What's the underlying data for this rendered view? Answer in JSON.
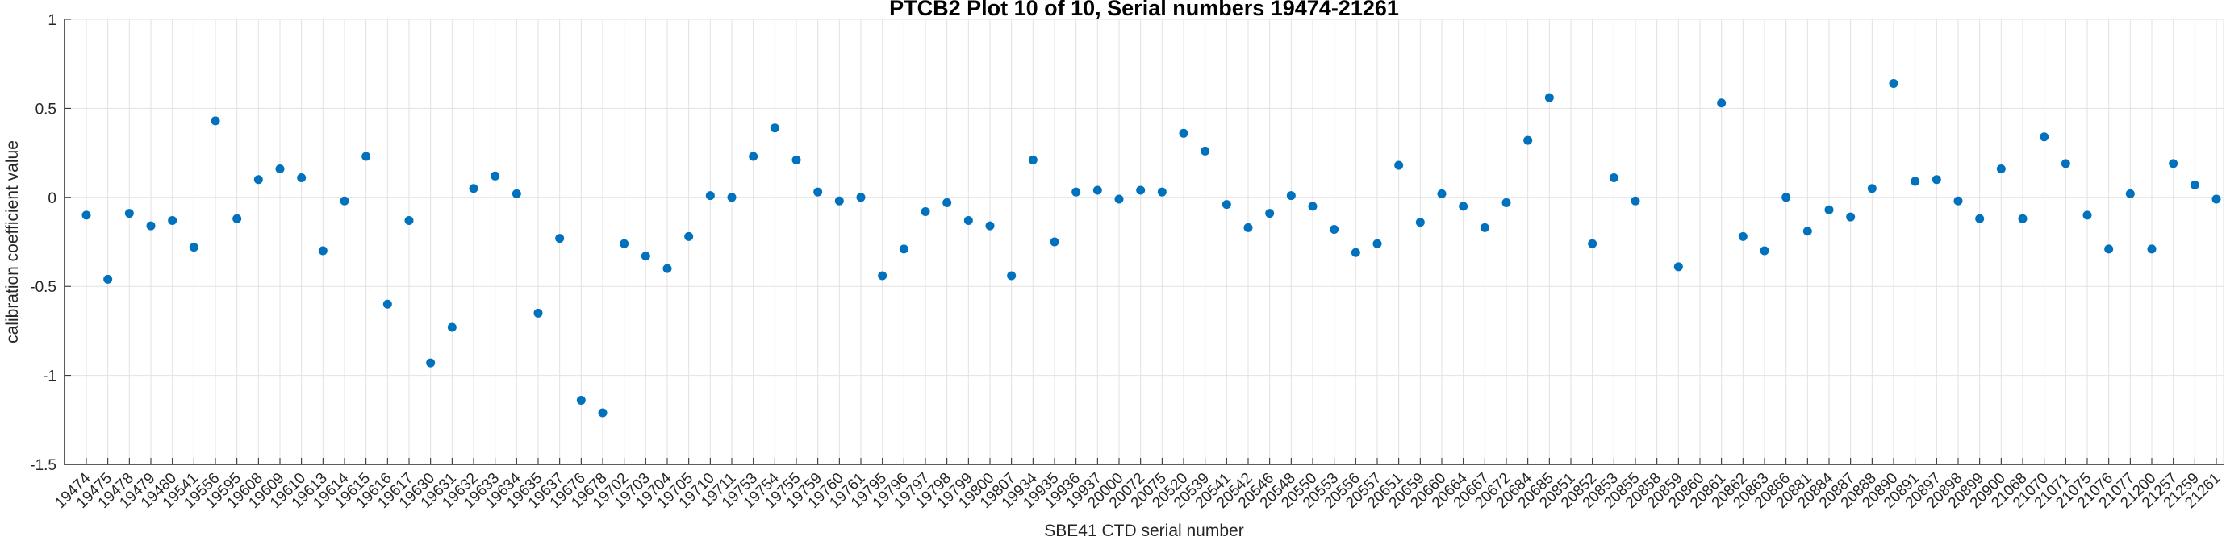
{
  "chart_data": {
    "type": "scatter",
    "title": "PTCB2 Plot 10 of 10, Serial numbers 19474-21261",
    "xlabel": "SBE41 CTD serial number",
    "ylabel": "calibration coefficient value",
    "ylim": [
      -1.5,
      1
    ],
    "yticks": [
      1,
      0.5,
      0,
      -0.5,
      -1,
      -1.5
    ],
    "grid": true,
    "legend": "none",
    "marker_color": "#0072BD",
    "grid_color": "#e2e2e2",
    "axis_color": "#262626",
    "categories": [
      "19474",
      "19475",
      "19478",
      "19479",
      "19480",
      "19541",
      "19556",
      "19595",
      "19608",
      "19609",
      "19610",
      "19613",
      "19614",
      "19615",
      "19616",
      "19617",
      "19630",
      "19631",
      "19632",
      "19633",
      "19634",
      "19635",
      "19637",
      "19676",
      "19678",
      "19702",
      "19703",
      "19704",
      "19705",
      "19710",
      "19711",
      "19753",
      "19754",
      "19755",
      "19759",
      "19760",
      "19761",
      "19795",
      "19796",
      "19797",
      "19798",
      "19799",
      "19800",
      "19807",
      "19934",
      "19935",
      "19936",
      "19937",
      "20000",
      "20072",
      "20075",
      "20520",
      "20539",
      "20541",
      "20542",
      "20546",
      "20548",
      "20550",
      "20553",
      "20556",
      "20557",
      "20651",
      "20659",
      "20660",
      "20664",
      "20667",
      "20672",
      "20684",
      "20685",
      "20851",
      "20852",
      "20853",
      "20855",
      "20858",
      "20859",
      "20860",
      "20861",
      "20862",
      "20863",
      "20866",
      "20881",
      "20884",
      "20887",
      "20888",
      "20890",
      "20891",
      "20897",
      "20898",
      "20899",
      "20900",
      "21068",
      "21070",
      "21071",
      "21075",
      "21076",
      "21077",
      "21200",
      "21257",
      "21259",
      "21261"
    ],
    "values": [
      -0.1,
      -0.46,
      -0.09,
      -0.16,
      -0.13,
      -0.28,
      0.43,
      -0.12,
      0.1,
      0.16,
      0.11,
      -0.3,
      -0.02,
      0.23,
      -0.6,
      -0.13,
      -0.93,
      -0.73,
      0.05,
      0.12,
      0.02,
      -0.65,
      -0.23,
      -1.14,
      -1.21,
      -0.26,
      -0.33,
      -0.4,
      -0.22,
      0.01,
      0.0,
      0.23,
      0.39,
      0.21,
      0.03,
      -0.02,
      0.0,
      -0.44,
      -0.29,
      -0.08,
      -0.03,
      -0.13,
      -0.16,
      -0.44,
      0.21,
      -0.25,
      0.03,
      0.04,
      -0.01,
      0.04,
      0.03,
      0.36,
      0.26,
      -0.04,
      -0.17,
      -0.09,
      0.01,
      -0.05,
      -0.18,
      -0.31,
      -0.26,
      0.18,
      -0.14,
      0.02,
      -0.05,
      -0.17,
      -0.03,
      0.32,
      0.56,
      null,
      -0.26,
      0.11,
      -0.02,
      null,
      -0.39,
      null,
      0.53,
      -0.22,
      -0.3,
      0.0,
      -0.19,
      -0.07,
      -0.11,
      0.05,
      0.64,
      0.09,
      0.1,
      -0.02,
      -0.12,
      0.16,
      -0.12,
      0.34,
      0.19,
      -0.1,
      -0.29,
      0.02,
      -0.29,
      0.19,
      0.07,
      -0.01
    ]
  }
}
